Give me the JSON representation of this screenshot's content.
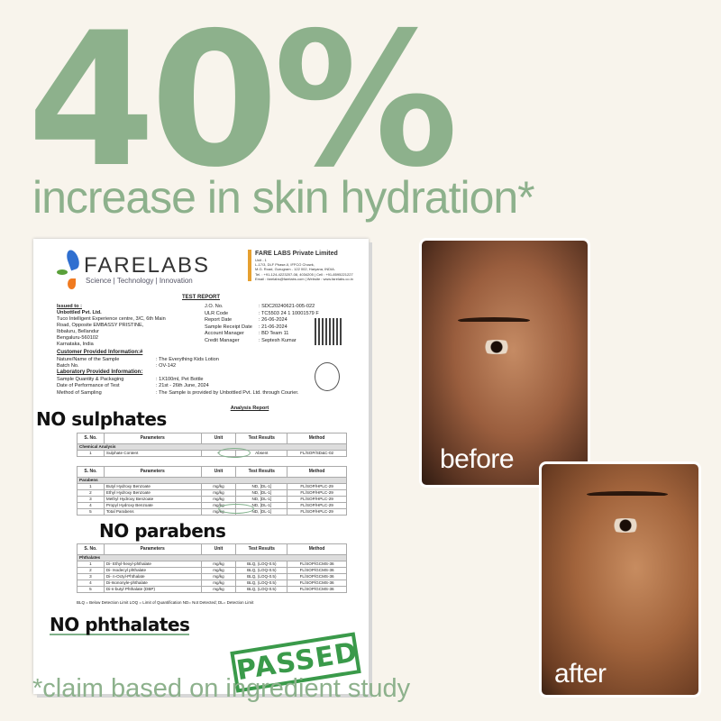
{
  "headline": {
    "stat": "40%",
    "text": "increase in skin hydration*"
  },
  "footnote": "*claim based on ingredient study",
  "colors": {
    "accent": "#8db18c",
    "background": "#f8f4ec",
    "stamp": "#3a9a4a"
  },
  "report": {
    "logo": {
      "name": "FARELABS",
      "tagline": "Science | Technology | Innovation"
    },
    "lab": {
      "name": "FARE LABS Private Limited",
      "unit": "Unit - 1",
      "address1": "L-17/3, DLF Phase-II, IFFCO Chowk,",
      "address2": "M.G. Road, Gurugram - 122 002, Haryana, INDIA.",
      "tel": "Tel. : +91-124-4223207-08, 4034205 | Cell : +91-8595221227",
      "email": "Email : farelabs@farelabs.com | Website : www.farelabs.co.in"
    },
    "title": "TEST REPORT",
    "issued_label": "Issued to :",
    "issued_to": "Unbottled Pvt. Ltd.",
    "address": [
      "Tuco Intelligent Experience centre, 3/C, 6th Main",
      "Road, Opposite EMBASSY PRISTINE,",
      "Ibbaluru, Bellandur",
      "Bengaluru-560102",
      "Karnataka, India"
    ],
    "meta": [
      [
        "J.O. No.",
        ": SDC20240621-005-022"
      ],
      [
        "ULR Code",
        ": TC5503 24 1 10001579 F"
      ],
      [
        "Report Date",
        ": 26-06-2024"
      ],
      [
        "Sample Receipt Date",
        ": 21-06-2024"
      ],
      [
        "Account Manager",
        ": BD Team 11"
      ],
      [
        "Credit Manager",
        ": Septesh Kumar"
      ]
    ],
    "customer_heading": "Customer Provided Information:#",
    "customer": [
      [
        "Nature/Name of the Sample",
        ": The Everything Kids Lotion"
      ],
      [
        "Batch No.",
        ": OV-142"
      ]
    ],
    "lab_heading": "Laboratory Provided Information:",
    "labinfo": [
      [
        "Sample Quantity & Packaging",
        ": 1X100ml, Pet Bottle"
      ],
      [
        "Date of Performance of Test",
        ": 21st - 26th June, 2024"
      ],
      [
        "Method of Sampling",
        ": The Sample is provided by Unbottled Pvt. Ltd. through Courier."
      ]
    ],
    "analysis_title": "Analysis Report",
    "headers": [
      "S. No.",
      "Parameters",
      "Unit",
      "Test Results",
      "Method"
    ],
    "tables": [
      {
        "group": "Chemical Analysis",
        "rows": [
          [
            "1",
            "Sulphate Content",
            "--",
            "Absent",
            "FL/SOP/SD&C-02"
          ]
        ]
      },
      {
        "group": "Parabens",
        "rows": [
          [
            "1",
            "Butyl Hydroxy Benzoate",
            "mg/kg",
            "ND, [DL-1]",
            "FL/SOP/HPLC-29"
          ],
          [
            "2",
            "Ethyl Hydroxy Benzoate",
            "mg/kg",
            "ND, [DL-1]",
            "FL/SOP/HPLC-29"
          ],
          [
            "3",
            "Methyl Hydroxy Benzoate",
            "mg/kg",
            "ND, [DL-1]",
            "FL/SOP/HPLC-29"
          ],
          [
            "4",
            "Propyl Hydroxy Benzoate",
            "mg/kg",
            "ND, [DL-1]",
            "FL/SOP/HPLC-29"
          ],
          [
            "5",
            "Total Parabens",
            "mg/kg",
            "ND, [DL-1]",
            "FL/SOP/HPLC-29"
          ]
        ]
      },
      {
        "group": "Phthalates",
        "rows": [
          [
            "1",
            "Di- Ethyl-hexyl-phthalate",
            "mg/kg",
            "BLQ, (LOQ-0.5)",
            "FL/SOP/GCMS-36"
          ],
          [
            "2",
            "Di- Isodecyl phthalate",
            "mg/kg",
            "BLQ, (LOQ-0.5)",
            "FL/SOP/GCMS-36"
          ],
          [
            "3",
            "Di- n-Octyl-Phthalate",
            "mg/kg",
            "BLQ, (LOQ-0.5)",
            "FL/SOP/GCMS-36"
          ],
          [
            "4",
            "Di-Isononyle-phthalate",
            "mg/kg",
            "BLQ, (LOQ-0.5)",
            "FL/SOP/GCMS-36"
          ],
          [
            "5",
            "Di-n-butyl Phthalate (DBP)",
            "mg/kg",
            "BLQ, (LOQ-0.5)",
            "FL/SOP/GCMS-36"
          ]
        ]
      }
    ],
    "legend": "BLQ = Below Detection Limit  LOQ = Limit of Quantification ND= Not Detected; DL= Detection Limit",
    "stamp": "PASSED"
  },
  "annotations": {
    "sulphates": "NO sulphates",
    "parabens": "NO parabens",
    "phthalates": "NO phthalates"
  },
  "photos": {
    "before": "before",
    "after": "after"
  }
}
